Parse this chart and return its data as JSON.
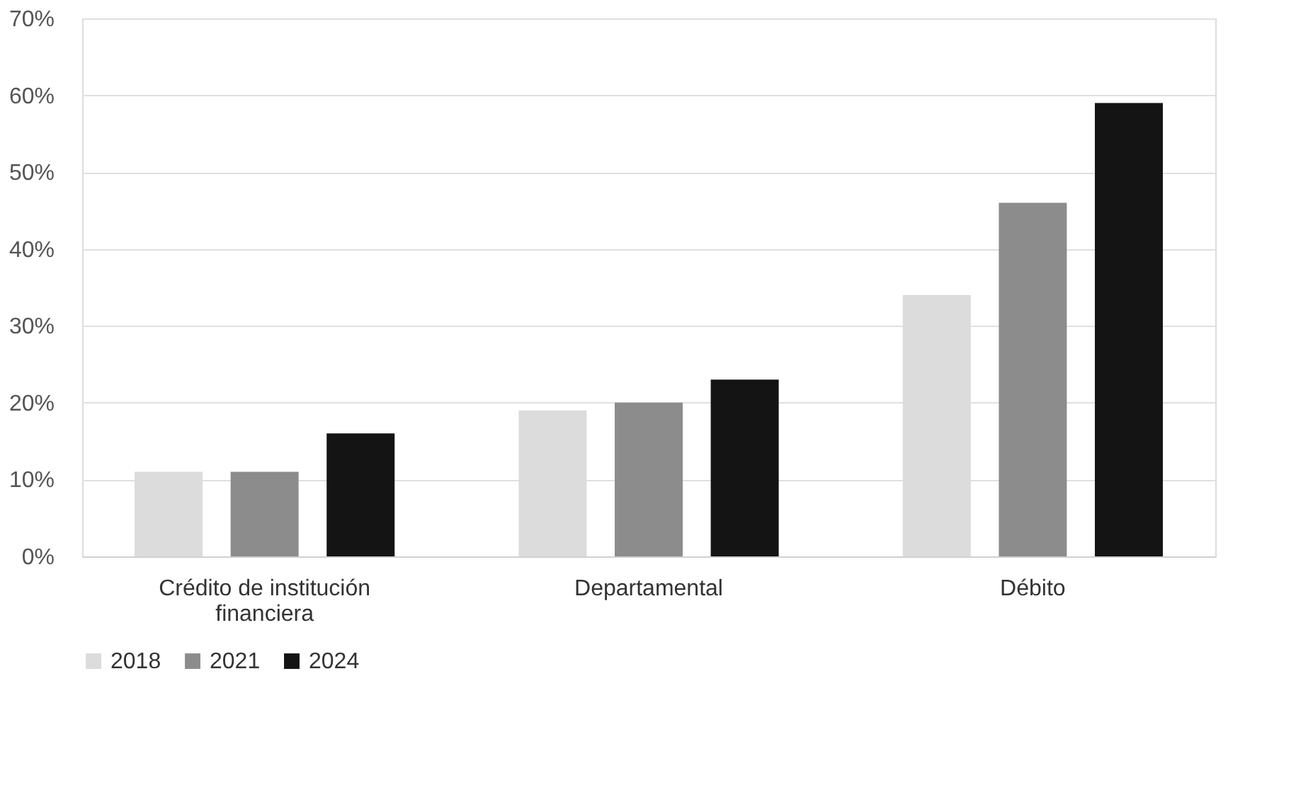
{
  "chart_data": {
    "type": "bar",
    "categories": [
      "Crédito de institución financiera",
      "Departamental",
      "Débito"
    ],
    "series": [
      {
        "name": "2018",
        "color": "#dcdcdc",
        "values": [
          11,
          19,
          34
        ]
      },
      {
        "name": "2021",
        "color": "#8c8c8c",
        "values": [
          11,
          20,
          46
        ]
      },
      {
        "name": "2024",
        "color": "#141414",
        "values": [
          16,
          23,
          59
        ]
      }
    ],
    "ylim": [
      0,
      70
    ],
    "yticks": [
      {
        "value": 0,
        "label": "0%"
      },
      {
        "value": 10,
        "label": "10%"
      },
      {
        "value": 20,
        "label": "20%"
      },
      {
        "value": 30,
        "label": "30%"
      },
      {
        "value": 40,
        "label": "40%"
      },
      {
        "value": 50,
        "label": "50%"
      },
      {
        "value": 60,
        "label": "60%"
      },
      {
        "value": 70,
        "label": "70%"
      }
    ],
    "grid": "y",
    "legend": "bottom"
  }
}
